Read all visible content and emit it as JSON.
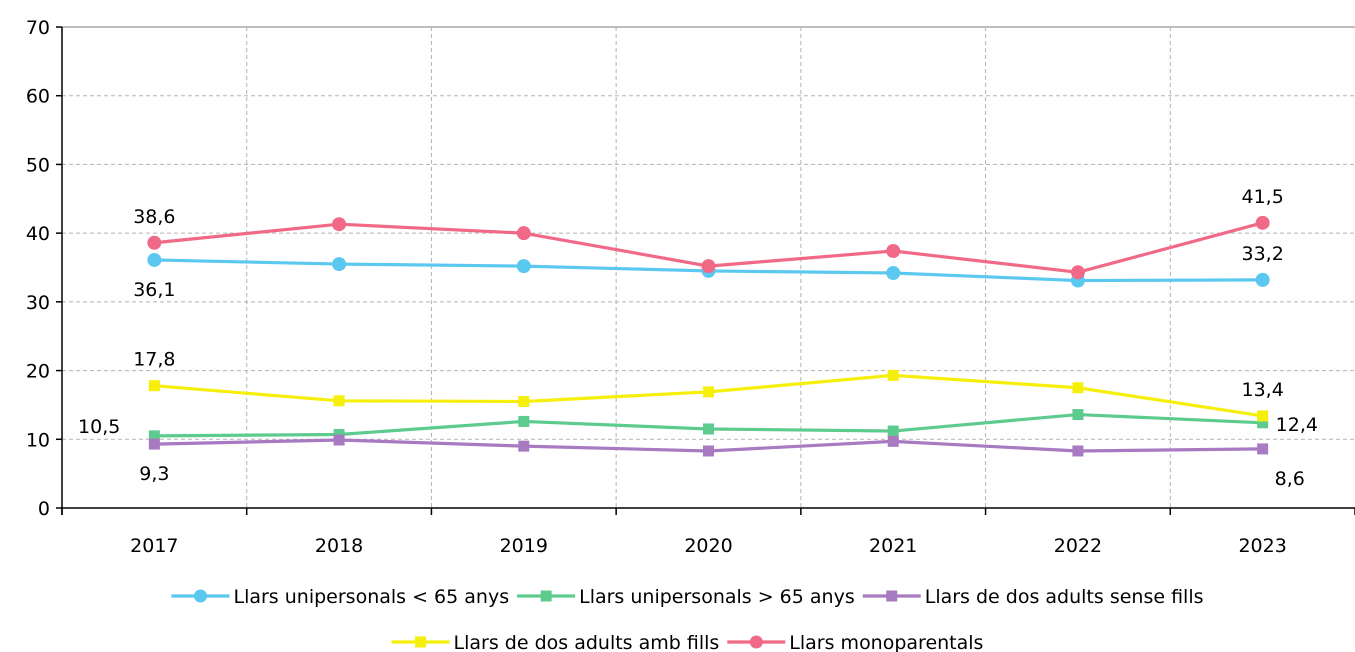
{
  "chart_data": {
    "type": "line",
    "x": [
      "2017",
      "2018",
      "2019",
      "2020",
      "2021",
      "2022",
      "2023"
    ],
    "ylim": [
      0,
      70
    ],
    "yticks": [
      0,
      10,
      20,
      30,
      40,
      50,
      60,
      70
    ],
    "grid": true,
    "legend_position": "bottom",
    "series": [
      {
        "name": "Llars unipersonals < 65 anys",
        "color": "#5bc8f0",
        "marker": "circle",
        "values": [
          36.1,
          35.5,
          35.2,
          34.5,
          34.2,
          33.1,
          33.2
        ],
        "labels": [
          {
            "index": 0,
            "text": "36,1",
            "pos": "below"
          },
          {
            "index": 6,
            "text": "33,2",
            "pos": "above"
          }
        ]
      },
      {
        "name": "Llars unipersonals > 65 anys",
        "color": "#5ecb8e",
        "marker": "square",
        "values": [
          10.5,
          10.7,
          12.6,
          11.5,
          11.2,
          13.6,
          12.4
        ],
        "labels": [
          {
            "index": 0,
            "text": "10,5",
            "pos": "left"
          },
          {
            "index": 6,
            "text": "12,4",
            "pos": "right"
          }
        ]
      },
      {
        "name": "Llars de dos adults sense fills",
        "color": "#a77ac1",
        "marker": "square",
        "values": [
          9.3,
          9.9,
          9.0,
          8.3,
          9.7,
          8.3,
          8.6
        ],
        "labels": [
          {
            "index": 0,
            "text": "9,3",
            "pos": "below"
          },
          {
            "index": 6,
            "text": "8,6",
            "pos": "below-right"
          }
        ]
      },
      {
        "name": "Llars de dos adults amb fills",
        "color": "#f5ef0b",
        "marker": "square",
        "values": [
          17.8,
          15.6,
          15.5,
          16.9,
          19.3,
          17.5,
          13.4
        ],
        "labels": [
          {
            "index": 0,
            "text": "17,8",
            "pos": "above"
          },
          {
            "index": 6,
            "text": "13,4",
            "pos": "above"
          }
        ]
      },
      {
        "name": "Llars monoparentals",
        "color": "#f06a88",
        "marker": "circle",
        "values": [
          38.6,
          41.3,
          40.0,
          35.2,
          37.4,
          34.3,
          41.5
        ],
        "labels": [
          {
            "index": 0,
            "text": "38,6",
            "pos": "above"
          },
          {
            "index": 6,
            "text": "41,5",
            "pos": "above"
          }
        ]
      }
    ]
  }
}
